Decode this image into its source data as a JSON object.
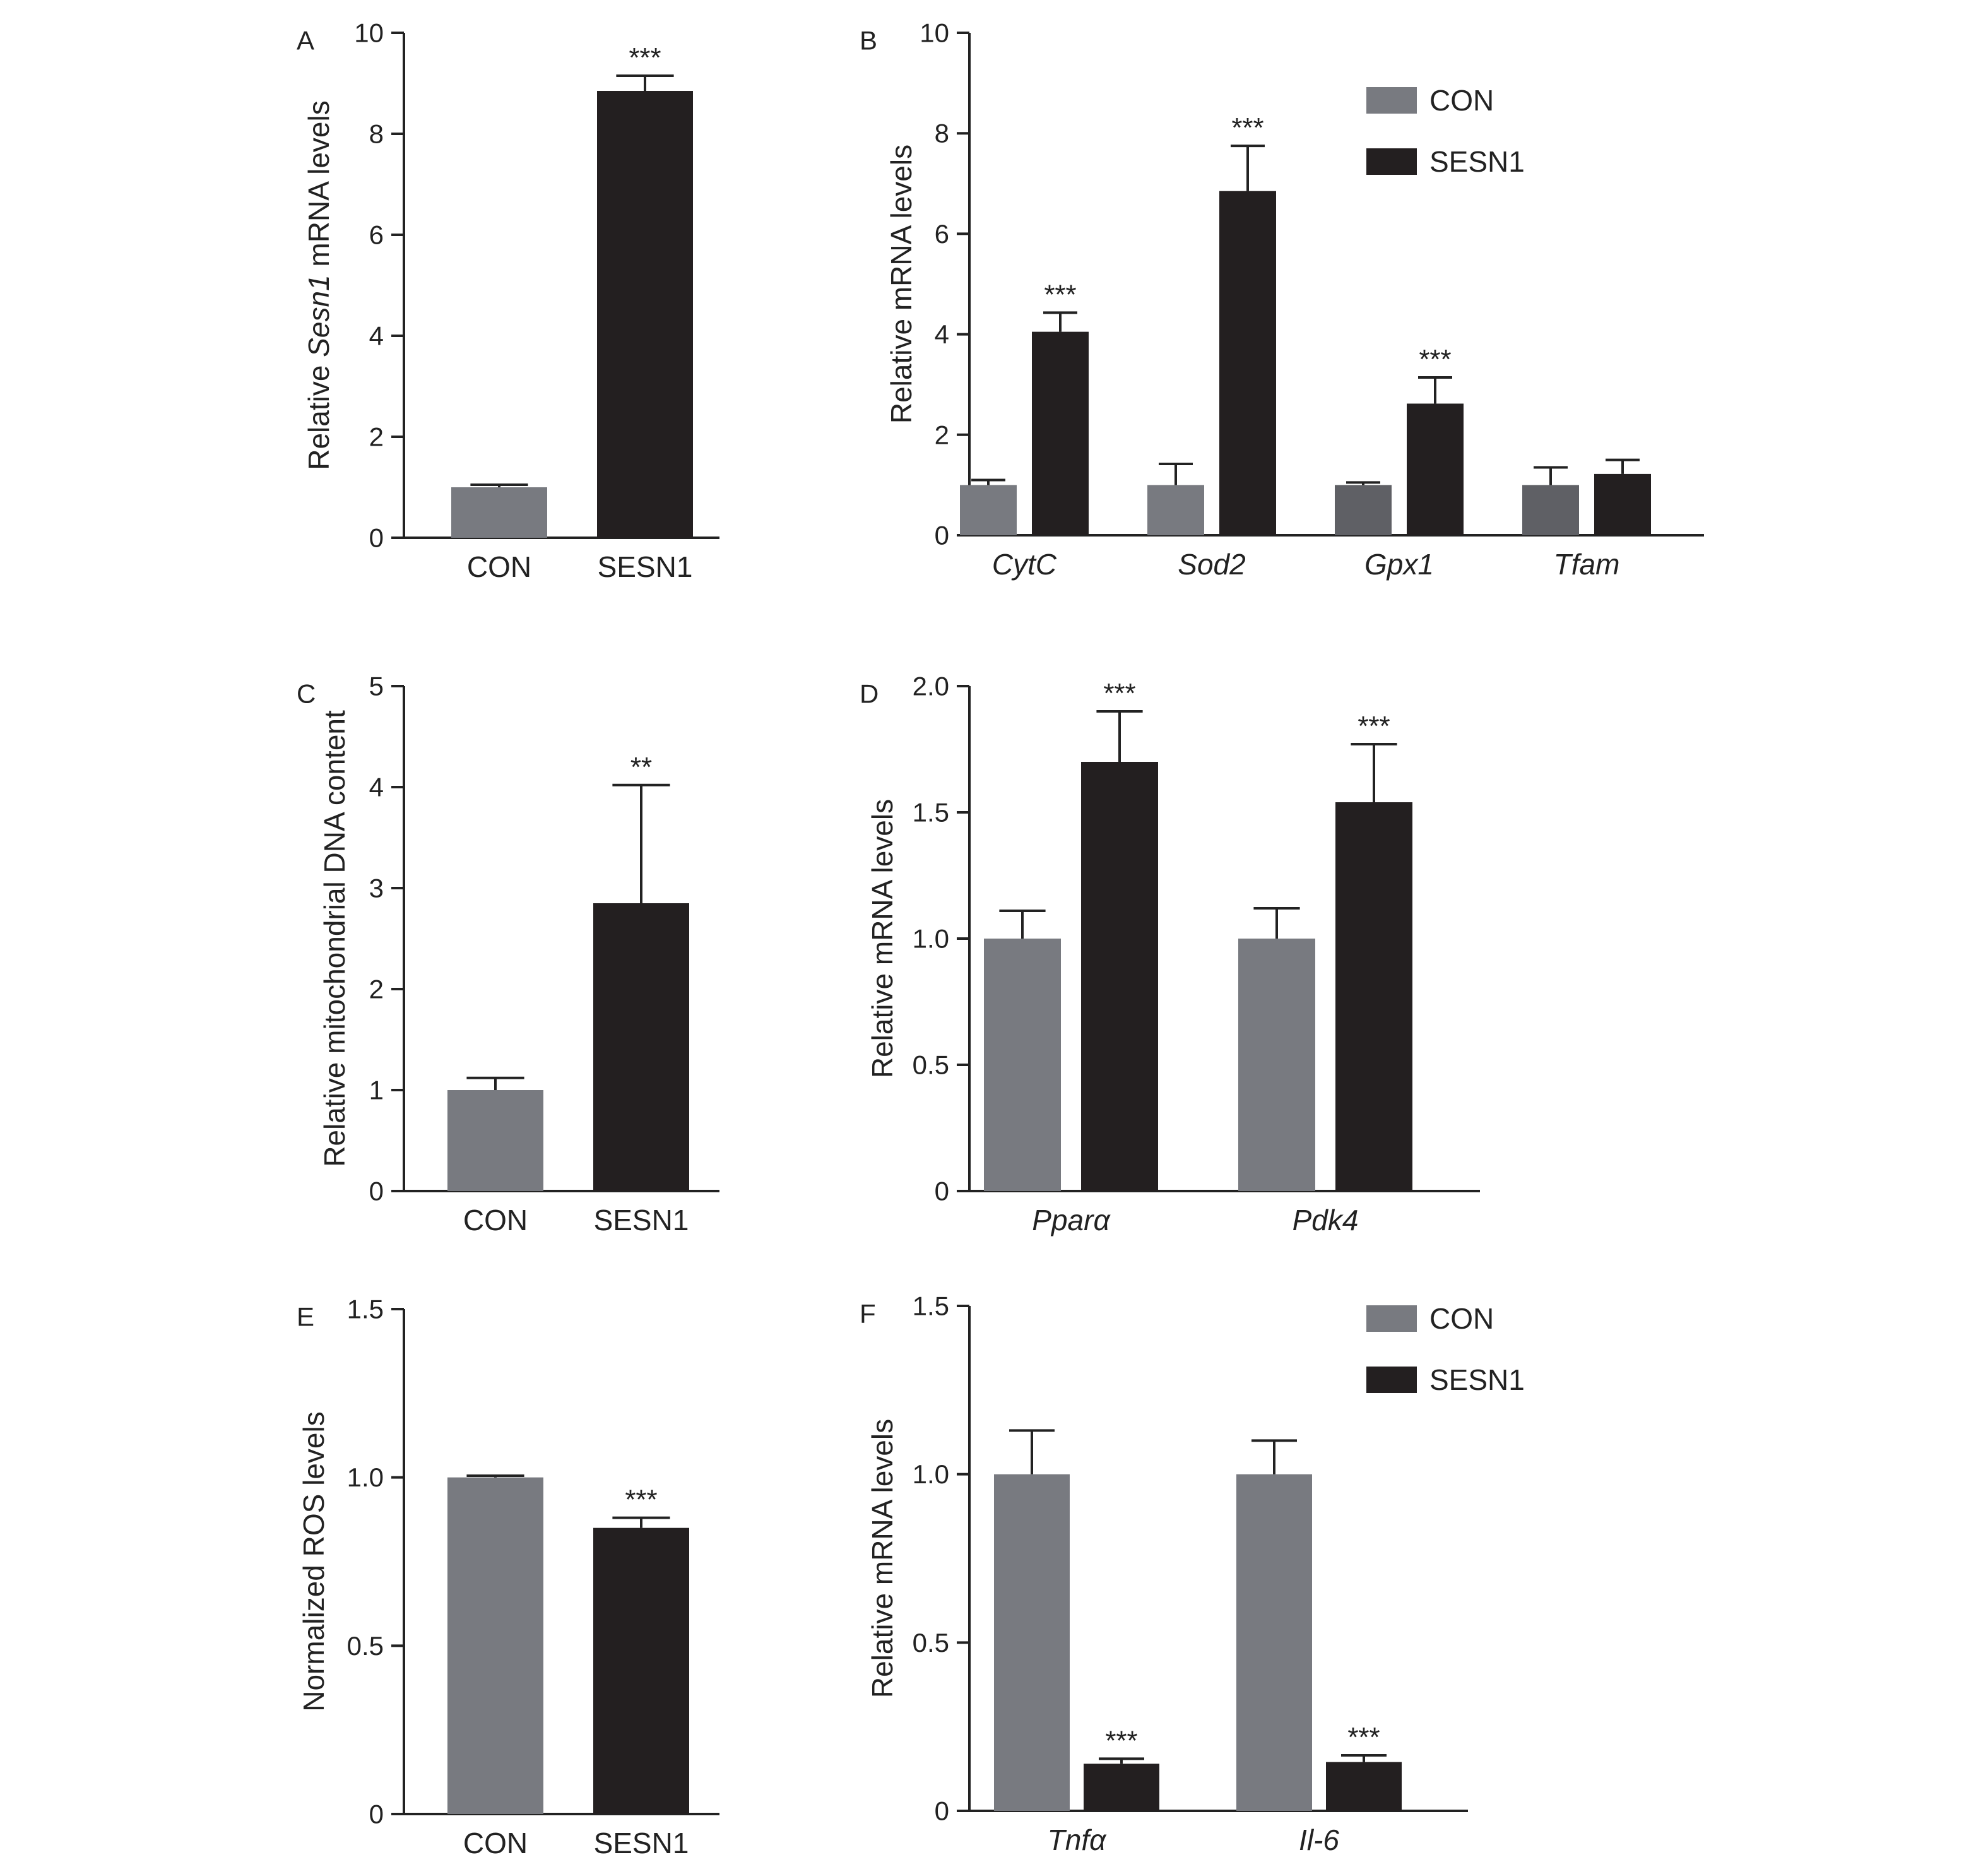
{
  "colors": {
    "con": "#787a80",
    "sesn1": "#231f20",
    "con_dark": "#5f6065",
    "axis": "#222222"
  },
  "chart_data": [
    {
      "panel": "A",
      "type": "bar",
      "ylabel_parts": [
        {
          "text": "Relative ",
          "italic": false
        },
        {
          "text": "Sesn1",
          "italic": true
        },
        {
          "text": " mRNA levels",
          "italic": false
        }
      ],
      "ylim": [
        0,
        10
      ],
      "yticks": [
        0,
        2,
        4,
        6,
        8,
        10
      ],
      "tick_labels": [
        "0",
        "2",
        "4",
        "6",
        "8",
        "10"
      ],
      "categories": [
        "CON",
        "SESN1"
      ],
      "category_italic": false,
      "series": [
        {
          "key": "con",
          "values": [
            1.0,
            8.85
          ],
          "errors": [
            0.05,
            0.3
          ],
          "sig": [
            "",
            "***"
          ],
          "per_category_colors": [
            "con",
            "sesn1"
          ]
        }
      ],
      "legend": null
    },
    {
      "panel": "B",
      "type": "bar",
      "ylabel_parts": [
        {
          "text": "Relative mRNA levels",
          "italic": false
        }
      ],
      "ylim": [
        0,
        10
      ],
      "yticks": [
        0,
        2,
        4,
        6,
        8,
        10
      ],
      "tick_labels": [
        "0",
        "2",
        "4",
        "6",
        "8",
        "10"
      ],
      "categories": [
        "CytC",
        "Sod2",
        "Gpx1",
        "Tfam"
      ],
      "category_italic": true,
      "series": [
        {
          "name": "CON",
          "key": "con",
          "values": [
            1.0,
            1.0,
            1.0,
            1.0
          ],
          "errors": [
            0.1,
            0.42,
            0.05,
            0.35
          ],
          "sig": [
            "",
            "",
            "",
            ""
          ]
        },
        {
          "name": "SESN1",
          "key": "sesn1",
          "values": [
            4.05,
            6.85,
            2.62,
            1.22
          ],
          "errors": [
            0.38,
            0.9,
            0.52,
            0.28
          ],
          "sig": [
            "***",
            "***",
            "***",
            ""
          ]
        }
      ],
      "legend": {
        "position": "top-right",
        "labels": [
          "CON",
          "SESN1"
        ]
      }
    },
    {
      "panel": "C",
      "type": "bar",
      "ylabel_parts": [
        {
          "text": "Relative mitochondrial DNA content",
          "italic": false
        }
      ],
      "ylim": [
        0,
        5
      ],
      "yticks": [
        0,
        1,
        2,
        3,
        4,
        5
      ],
      "tick_labels": [
        "0",
        "1",
        "2",
        "3",
        "4",
        "5"
      ],
      "categories": [
        "CON",
        "SESN1"
      ],
      "category_italic": false,
      "series": [
        {
          "key": "con",
          "values": [
            1.0,
            2.85
          ],
          "errors": [
            0.12,
            1.17
          ],
          "sig": [
            "",
            "**"
          ],
          "per_category_colors": [
            "con",
            "sesn1"
          ]
        }
      ],
      "legend": null
    },
    {
      "panel": "D",
      "type": "bar",
      "ylabel_parts": [
        {
          "text": "Relative mRNA levels",
          "italic": false
        }
      ],
      "ylim": [
        0,
        2.0
      ],
      "yticks": [
        0,
        0.5,
        1.0,
        1.5,
        2.0
      ],
      "tick_labels": [
        "0",
        "0.5",
        "1.0",
        "1.5",
        "2.0"
      ],
      "categories": [
        "Pparα",
        "Pdk4"
      ],
      "category_italic": true,
      "series": [
        {
          "name": "CON",
          "key": "con",
          "values": [
            1.0,
            1.0
          ],
          "errors": [
            0.11,
            0.12
          ],
          "sig": [
            "",
            ""
          ]
        },
        {
          "name": "SESN1",
          "key": "sesn1",
          "values": [
            1.7,
            1.54
          ],
          "errors": [
            0.2,
            0.23
          ],
          "sig": [
            "***",
            "***"
          ]
        }
      ],
      "legend": null
    },
    {
      "panel": "E",
      "type": "bar",
      "ylabel_parts": [
        {
          "text": "Normalized ROS levels",
          "italic": false
        }
      ],
      "ylim": [
        0,
        1.5
      ],
      "yticks": [
        0,
        0.5,
        1.0,
        1.5
      ],
      "tick_labels": [
        "0",
        "0.5",
        "1.0",
        "1.5"
      ],
      "categories": [
        "CON",
        "SESN1"
      ],
      "category_italic": false,
      "series": [
        {
          "key": "con",
          "values": [
            1.0,
            0.85
          ],
          "errors": [
            0.005,
            0.03
          ],
          "sig": [
            "",
            "***"
          ],
          "per_category_colors": [
            "con",
            "sesn1"
          ]
        }
      ],
      "legend": null
    },
    {
      "panel": "F",
      "type": "bar",
      "ylabel_parts": [
        {
          "text": "Relative mRNA levels",
          "italic": false
        }
      ],
      "ylim": [
        0,
        1.5
      ],
      "yticks": [
        0,
        0.5,
        1.0,
        1.5
      ],
      "tick_labels": [
        "0",
        "0.5",
        "1.0",
        "1.5"
      ],
      "categories": [
        "Tnfα",
        "Il-6"
      ],
      "category_italic": true,
      "series": [
        {
          "name": "CON",
          "key": "con",
          "values": [
            1.0,
            1.0
          ],
          "errors": [
            0.13,
            0.1
          ],
          "sig": [
            "",
            ""
          ]
        },
        {
          "name": "SESN1",
          "key": "sesn1",
          "values": [
            0.14,
            0.145
          ],
          "errors": [
            0.015,
            0.02
          ],
          "sig": [
            "***",
            "***"
          ]
        }
      ],
      "legend": {
        "position": "top-right",
        "labels": [
          "CON",
          "SESN1"
        ]
      }
    }
  ]
}
